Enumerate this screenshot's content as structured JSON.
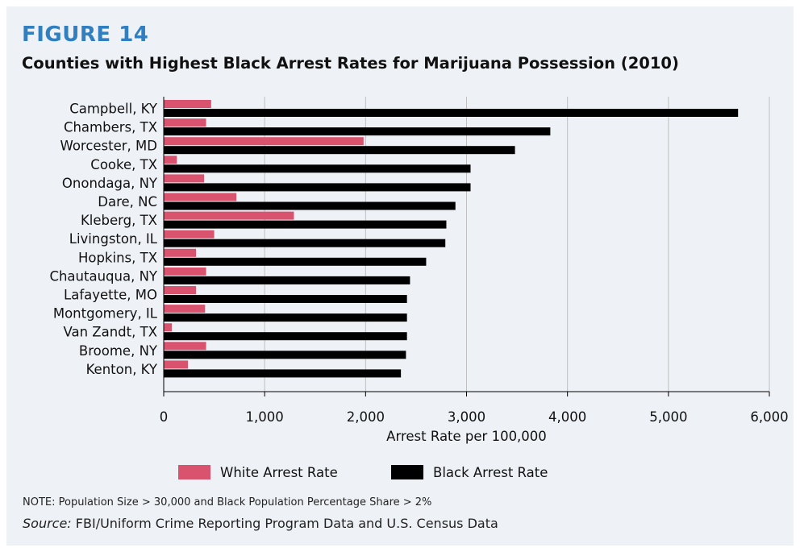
{
  "figure_label": "FIGURE 14",
  "figure_title": "Counties with Highest Black Arrest Rates for Marijuana Possession (2010)",
  "note": "NOTE: Population Size > 30,000 and Black Population Percentage Share > 2%",
  "source_label": "Source:",
  "source_text": " FBI/Uniform Crime Reporting Program Data and U.S. Census Data",
  "colors": {
    "panel_background": "#eef2f7",
    "title_blue": "#2f7fc1",
    "white_series": "#d9536f",
    "black_series": "#000000",
    "grid": "#bfbfbf"
  },
  "chart_data": {
    "type": "bar",
    "orientation": "horizontal",
    "categories": [
      "Campbell, KY",
      "Chambers, TX",
      "Worcester, MD",
      "Cooke, TX",
      "Onondaga, NY",
      "Dare, NC",
      "Kleberg, TX",
      "Livingston, IL",
      "Hopkins, TX",
      "Chautauqua, NY",
      "Lafayette, MO",
      "Montgomery, IL",
      "Van Zandt, TX",
      "Broome, NY",
      "Kenton, KY"
    ],
    "series": [
      {
        "name": "White Arrest Rate",
        "color": "#d9536f",
        "values": [
          470,
          420,
          1980,
          130,
          400,
          720,
          1290,
          500,
          320,
          420,
          320,
          410,
          80,
          420,
          240
        ]
      },
      {
        "name": "Black Arrest Rate",
        "color": "#000000",
        "values": [
          5690,
          3830,
          3480,
          3040,
          3040,
          2890,
          2800,
          2790,
          2600,
          2440,
          2410,
          2410,
          2410,
          2400,
          2350
        ]
      }
    ],
    "xlabel": "Arrest Rate per 100,000",
    "ylabel": "",
    "xlim": [
      0,
      6000
    ],
    "xticks": [
      0,
      1000,
      2000,
      3000,
      4000,
      5000,
      6000
    ],
    "xtick_labels": [
      "0",
      "1,000",
      "2,000",
      "3,000",
      "4,000",
      "5,000",
      "6,000"
    ],
    "grid": "vertical",
    "legend": "bottom"
  }
}
